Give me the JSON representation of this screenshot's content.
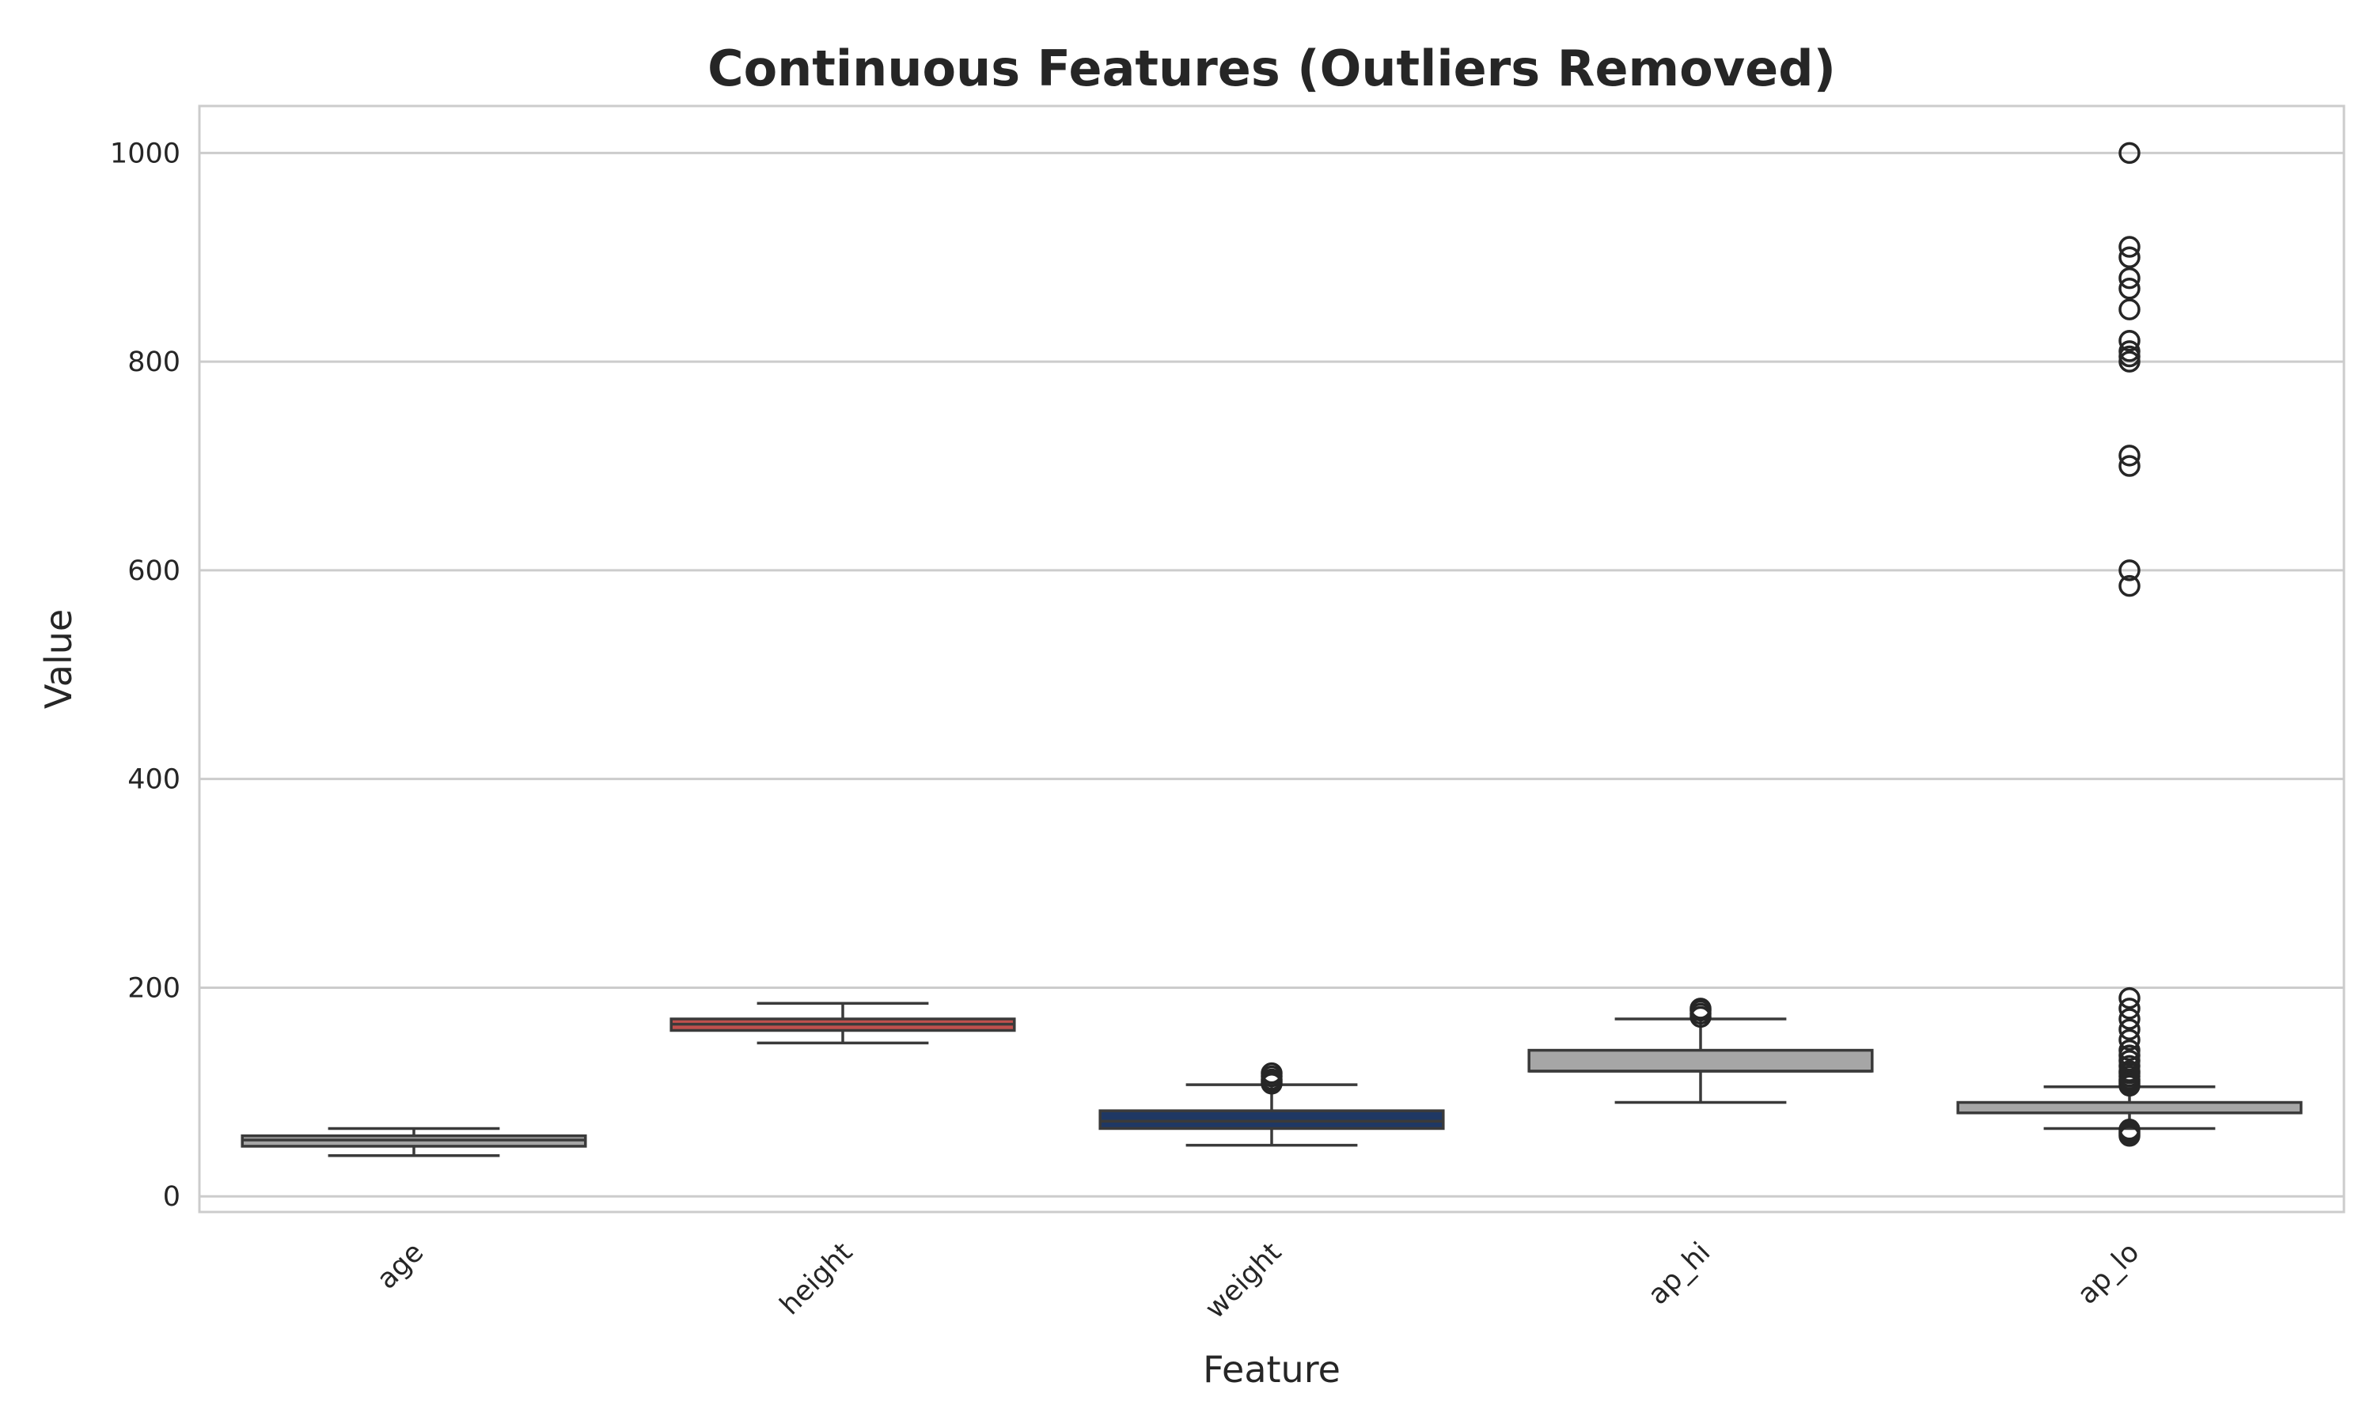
{
  "chart_data": {
    "type": "boxplot",
    "title": "Continuous Features (Outliers Removed)",
    "xlabel": "Feature",
    "ylabel": "Value",
    "ylim": [
      -15,
      1045
    ],
    "yticks": [
      0,
      200,
      400,
      600,
      800,
      1000
    ],
    "grid": true,
    "categories": [
      "age",
      "height",
      "weight",
      "ap_hi",
      "ap_lo"
    ],
    "boxes": [
      {
        "name": "age",
        "color": "#a6a6a6",
        "whisker_low": 39,
        "q1": 48,
        "median": 54,
        "q3": 58,
        "whisker_high": 65,
        "outliers": []
      },
      {
        "name": "height",
        "color": "#c0504d",
        "whisker_low": 147,
        "q1": 159,
        "median": 165,
        "q3": 170,
        "whisker_high": 185,
        "outliers": []
      },
      {
        "name": "weight",
        "color": "#1f3864",
        "whisker_low": 49,
        "q1": 65,
        "median": 72,
        "q3": 82,
        "whisker_high": 107,
        "outliers": [
          108,
          110,
          112,
          115,
          118
        ]
      },
      {
        "name": "ap_hi",
        "color": "#a6a6a6",
        "whisker_low": 90,
        "q1": 120,
        "median": 120,
        "q3": 140,
        "whisker_high": 170,
        "outliers": [
          172,
          175,
          178,
          180
        ]
      },
      {
        "name": "ap_lo",
        "color": "#a6a6a6",
        "whisker_low": 65,
        "q1": 80,
        "median": 80,
        "q3": 90,
        "whisker_high": 105,
        "outliers": [
          58,
          60,
          62,
          64,
          106,
          108,
          110,
          112,
          115,
          118,
          120,
          125,
          130,
          135,
          140,
          150,
          160,
          170,
          180,
          190,
          585,
          600,
          700,
          710,
          800,
          805,
          810,
          820,
          850,
          870,
          880,
          900,
          910,
          1000
        ]
      }
    ]
  }
}
